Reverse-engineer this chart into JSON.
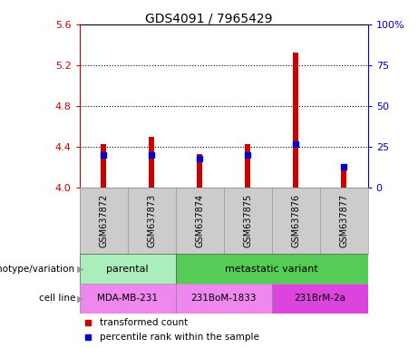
{
  "title": "GDS4091 / 7965429",
  "samples": [
    "GSM637872",
    "GSM637873",
    "GSM637874",
    "GSM637875",
    "GSM637876",
    "GSM637877"
  ],
  "red_values": [
    4.43,
    4.5,
    4.33,
    4.43,
    5.32,
    4.17
  ],
  "blue_values": [
    20.0,
    20.0,
    18.0,
    20.0,
    27.0,
    13.0
  ],
  "ylim_left": [
    4.0,
    5.6
  ],
  "ylim_right": [
    0,
    100
  ],
  "left_ticks": [
    4.0,
    4.4,
    4.8,
    5.2,
    5.6
  ],
  "right_ticks": [
    0,
    25,
    50,
    75,
    100
  ],
  "right_tick_labels": [
    "0",
    "25",
    "50",
    "75",
    "100%"
  ],
  "left_color": "#cc0000",
  "right_color": "#0000cc",
  "bar_width": 0.12,
  "bar_base": 4.0,
  "parental_color": "#aaeebb",
  "metastatic_color": "#55cc55",
  "cell_color1": "#ee88ee",
  "cell_color2": "#dd44dd",
  "genotype_label": "genotype/variation",
  "cellline_label": "cell line",
  "legend_red": "transformed count",
  "legend_blue": "percentile rank within the sample",
  "sample_bg": "#cccccc"
}
